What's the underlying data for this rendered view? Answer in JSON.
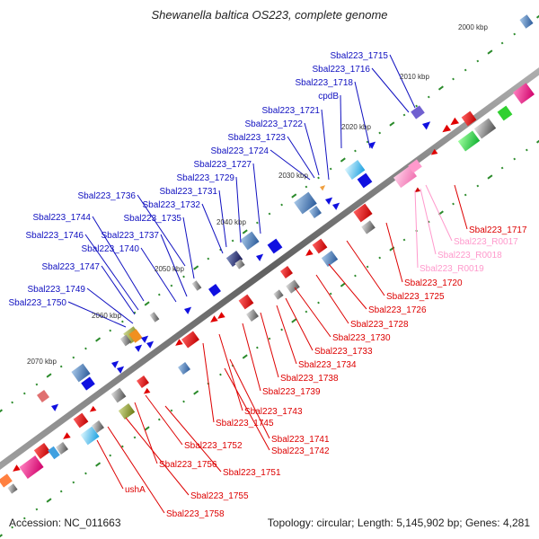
{
  "title": "Shewanella baltica OS223, complete genome",
  "footer": {
    "accession": "Accession: NC_011663",
    "stats": "Topology: circular; Length: 5,145,902 bp; Genes: 4,281"
  },
  "colors": {
    "forward_label": "#1010c0",
    "reverse_label": "#dd0000",
    "rna_label": "#ff99cc",
    "backbone": "#808080",
    "tick": "#2a8a2a"
  },
  "ticks": [
    "2000 kbp",
    "2010 kbp",
    "2020 kbp",
    "2030 kbp",
    "2040 kbp",
    "2050 kbp",
    "2060 kbp",
    "2070 kbp"
  ],
  "forward_labels": [
    "Sbal223_1715",
    "Sbal223_1716",
    "Sbal223_1718",
    "cpdB",
    "Sbal223_1721",
    "Sbal223_1722",
    "Sbal223_1723",
    "Sbal223_1724",
    "Sbal223_1727",
    "Sbal223_1729",
    "Sbal223_1731",
    "Sbal223_1732",
    "Sbal223_1735",
    "Sbal223_1736",
    "Sbal223_1737",
    "Sbal223_1740",
    "Sbal223_1744",
    "Sbal223_1746",
    "Sbal223_1747",
    "Sbal223_1749",
    "Sbal223_1750"
  ],
  "reverse_labels": [
    "Sbal223_1717",
    "Sbal223_1720",
    "Sbal223_1725",
    "Sbal223_1726",
    "Sbal223_1728",
    "Sbal223_1730",
    "Sbal223_1733",
    "Sbal223_1734",
    "Sbal223_1738",
    "Sbal223_1739",
    "Sbal223_1743",
    "Sbal223_1745",
    "Sbal223_1741",
    "Sbal223_1742",
    "Sbal223_1752",
    "Sbal223_1756",
    "Sbal223_1751",
    "ushA",
    "Sbal223_1755",
    "Sbal223_1758"
  ],
  "rna_labels": [
    "Sbal223_R0017",
    "Sbal223_R0018",
    "Sbal223_R0019"
  ]
}
